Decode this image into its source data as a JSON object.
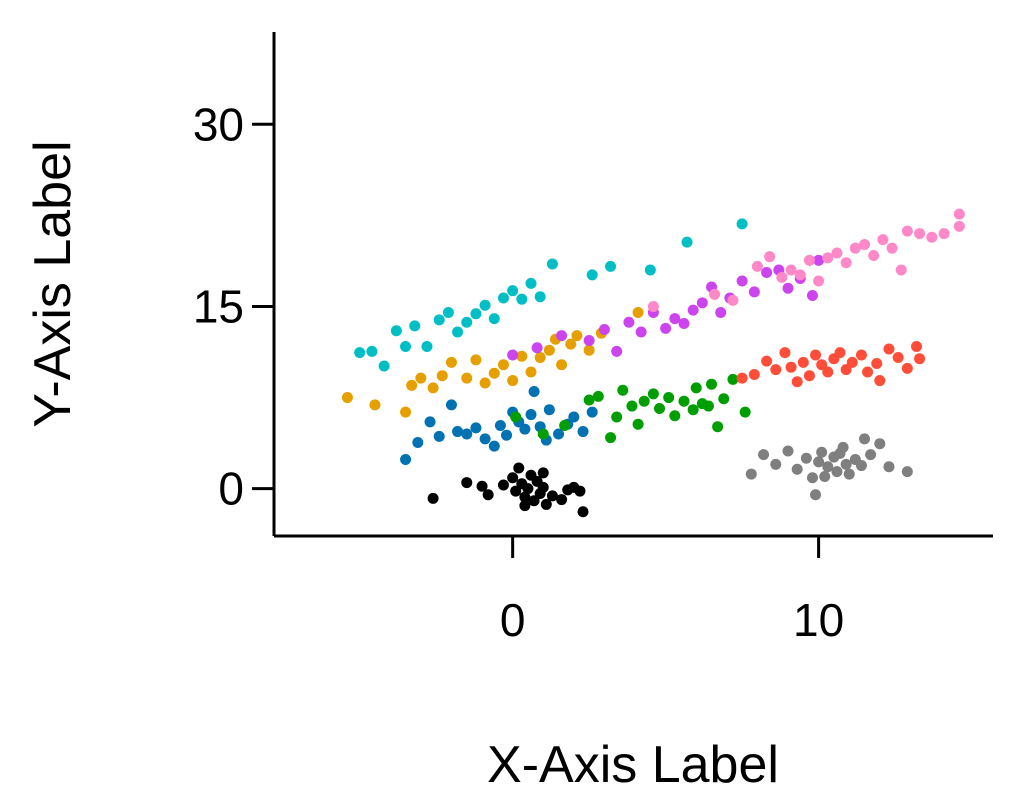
{
  "chart_data": {
    "type": "scatter",
    "title": "",
    "xlabel": "X-Axis Label",
    "ylabel": "Y-Axis Label",
    "xlim": [
      -7.8,
      15.7
    ],
    "ylim": [
      -3.9,
      37.6
    ],
    "xticks": [
      0,
      10
    ],
    "yticks": [
      0,
      15,
      30
    ],
    "grid": false,
    "legend": "none",
    "series": [
      {
        "color": "#000000",
        "points": [
          [
            -2.6,
            -0.8
          ],
          [
            -1.5,
            0.5
          ],
          [
            -1.0,
            0.2
          ],
          [
            -0.8,
            -0.5
          ],
          [
            -0.3,
            0.3
          ],
          [
            0.0,
            0.9
          ],
          [
            0.1,
            -0.2
          ],
          [
            0.2,
            1.7
          ],
          [
            0.3,
            0.4
          ],
          [
            0.4,
            -0.7
          ],
          [
            0.5,
            0.0
          ],
          [
            0.6,
            1.1
          ],
          [
            0.7,
            -1.0
          ],
          [
            0.8,
            0.6
          ],
          [
            0.9,
            -0.4
          ],
          [
            1.0,
            0.1
          ],
          [
            1.1,
            -1.3
          ],
          [
            1.3,
            -0.6
          ],
          [
            1.6,
            -0.9
          ],
          [
            1.8,
            -0.1
          ],
          [
            2.0,
            0.1
          ],
          [
            2.2,
            -0.2
          ],
          [
            2.3,
            -1.9
          ],
          [
            1.0,
            1.3
          ],
          [
            0.4,
            -1.4
          ]
        ]
      },
      {
        "color": "#7f7f7f",
        "points": [
          [
            7.8,
            1.2
          ],
          [
            8.2,
            2.8
          ],
          [
            8.6,
            2.0
          ],
          [
            9.0,
            3.1
          ],
          [
            9.3,
            1.6
          ],
          [
            9.6,
            2.5
          ],
          [
            9.8,
            0.9
          ],
          [
            10.0,
            2.2
          ],
          [
            10.1,
            3.0
          ],
          [
            10.2,
            1.0
          ],
          [
            10.3,
            1.8
          ],
          [
            10.5,
            2.6
          ],
          [
            10.6,
            1.4
          ],
          [
            10.8,
            3.4
          ],
          [
            10.9,
            2.0
          ],
          [
            11.0,
            1.2
          ],
          [
            11.2,
            2.4
          ],
          [
            11.4,
            1.9
          ],
          [
            11.5,
            4.1
          ],
          [
            11.7,
            2.8
          ],
          [
            12.0,
            3.7
          ],
          [
            12.3,
            1.8
          ],
          [
            12.9,
            1.4
          ],
          [
            9.9,
            -0.5
          ],
          [
            10.7,
            2.9
          ]
        ]
      },
      {
        "color": "#0072b2",
        "points": [
          [
            -3.5,
            2.4
          ],
          [
            -3.1,
            3.8
          ],
          [
            -2.7,
            5.5
          ],
          [
            -2.4,
            4.3
          ],
          [
            -2.0,
            6.9
          ],
          [
            -1.8,
            4.7
          ],
          [
            -1.5,
            4.5
          ],
          [
            -1.2,
            5.0
          ],
          [
            -0.9,
            4.1
          ],
          [
            -0.6,
            3.5
          ],
          [
            -0.4,
            5.2
          ],
          [
            -0.2,
            4.4
          ],
          [
            0.0,
            6.3
          ],
          [
            0.2,
            5.5
          ],
          [
            0.4,
            4.9
          ],
          [
            0.6,
            6.1
          ],
          [
            0.7,
            8.0
          ],
          [
            0.9,
            5.1
          ],
          [
            1.1,
            4.0
          ],
          [
            1.2,
            6.5
          ],
          [
            1.5,
            4.5
          ],
          [
            1.8,
            5.3
          ],
          [
            2.0,
            5.9
          ],
          [
            2.3,
            4.7
          ],
          [
            2.6,
            6.3
          ]
        ]
      },
      {
        "color": "#009e00",
        "points": [
          [
            1.0,
            4.5
          ],
          [
            1.7,
            5.2
          ],
          [
            2.5,
            7.3
          ],
          [
            2.8,
            7.6
          ],
          [
            3.2,
            4.2
          ],
          [
            3.4,
            5.9
          ],
          [
            3.6,
            8.1
          ],
          [
            3.9,
            6.8
          ],
          [
            4.1,
            5.3
          ],
          [
            4.3,
            7.2
          ],
          [
            4.6,
            7.8
          ],
          [
            4.8,
            6.6
          ],
          [
            5.1,
            7.5
          ],
          [
            5.3,
            6.0
          ],
          [
            5.6,
            7.2
          ],
          [
            5.9,
            6.5
          ],
          [
            6.0,
            8.3
          ],
          [
            6.2,
            7.0
          ],
          [
            6.4,
            6.8
          ],
          [
            6.5,
            8.6
          ],
          [
            6.7,
            5.1
          ],
          [
            6.9,
            7.4
          ],
          [
            7.2,
            9.0
          ],
          [
            7.6,
            6.3
          ],
          [
            0.1,
            5.9
          ]
        ]
      },
      {
        "color": "#e69f00",
        "points": [
          [
            -5.4,
            7.5
          ],
          [
            -4.5,
            6.9
          ],
          [
            -3.5,
            6.3
          ],
          [
            -3.3,
            8.5
          ],
          [
            -3.0,
            9.1
          ],
          [
            -2.6,
            8.3
          ],
          [
            -2.3,
            9.3
          ],
          [
            -2.0,
            10.4
          ],
          [
            -1.5,
            9.1
          ],
          [
            -1.2,
            10.6
          ],
          [
            -0.9,
            8.7
          ],
          [
            -0.6,
            9.5
          ],
          [
            -0.3,
            10.2
          ],
          [
            0.0,
            8.9
          ],
          [
            0.3,
            10.9
          ],
          [
            0.6,
            9.6
          ],
          [
            0.9,
            10.8
          ],
          [
            1.2,
            11.4
          ],
          [
            1.4,
            12.3
          ],
          [
            1.6,
            10.2
          ],
          [
            1.9,
            11.9
          ],
          [
            2.1,
            12.6
          ],
          [
            2.5,
            11.4
          ],
          [
            2.9,
            12.8
          ],
          [
            4.1,
            14.5
          ]
        ]
      },
      {
        "color": "#00bfc4",
        "points": [
          [
            -5.0,
            11.2
          ],
          [
            -4.6,
            11.3
          ],
          [
            -4.2,
            10.1
          ],
          [
            -3.8,
            13.0
          ],
          [
            -3.5,
            11.7
          ],
          [
            -3.2,
            13.4
          ],
          [
            -2.8,
            11.7
          ],
          [
            -2.4,
            13.9
          ],
          [
            -2.1,
            14.5
          ],
          [
            -1.8,
            12.9
          ],
          [
            -1.5,
            13.7
          ],
          [
            -1.2,
            14.4
          ],
          [
            -0.9,
            15.1
          ],
          [
            -0.6,
            14.0
          ],
          [
            -0.3,
            15.7
          ],
          [
            0.0,
            16.3
          ],
          [
            0.3,
            15.6
          ],
          [
            0.6,
            16.9
          ],
          [
            0.9,
            15.8
          ],
          [
            1.3,
            18.5
          ],
          [
            2.6,
            17.6
          ],
          [
            3.2,
            18.3
          ],
          [
            4.5,
            18.0
          ],
          [
            5.7,
            20.3
          ],
          [
            7.5,
            21.8
          ]
        ]
      },
      {
        "color": "#cc44ee",
        "points": [
          [
            0.0,
            11.0
          ],
          [
            0.8,
            11.6
          ],
          [
            1.6,
            12.6
          ],
          [
            2.5,
            12.2
          ],
          [
            3.0,
            13.1
          ],
          [
            3.4,
            11.3
          ],
          [
            3.8,
            13.7
          ],
          [
            4.2,
            12.9
          ],
          [
            4.6,
            14.5
          ],
          [
            5.0,
            13.2
          ],
          [
            5.3,
            14.0
          ],
          [
            5.6,
            13.6
          ],
          [
            5.9,
            14.7
          ],
          [
            6.2,
            15.3
          ],
          [
            6.5,
            16.6
          ],
          [
            6.8,
            14.5
          ],
          [
            7.1,
            15.7
          ],
          [
            7.5,
            17.1
          ],
          [
            7.9,
            16.2
          ],
          [
            8.3,
            17.8
          ],
          [
            8.7,
            18.0
          ],
          [
            9.0,
            16.5
          ],
          [
            9.4,
            17.3
          ],
          [
            9.8,
            15.9
          ],
          [
            10.0,
            18.8
          ]
        ]
      },
      {
        "color": "#ff4d3a",
        "points": [
          [
            7.5,
            9.1
          ],
          [
            7.9,
            9.4
          ],
          [
            8.3,
            10.5
          ],
          [
            8.6,
            9.8
          ],
          [
            8.9,
            11.2
          ],
          [
            9.1,
            10.0
          ],
          [
            9.3,
            8.8
          ],
          [
            9.5,
            10.4
          ],
          [
            9.7,
            9.3
          ],
          [
            9.9,
            11.0
          ],
          [
            10.1,
            10.2
          ],
          [
            10.3,
            9.6
          ],
          [
            10.5,
            10.7
          ],
          [
            10.7,
            11.2
          ],
          [
            10.9,
            9.8
          ],
          [
            11.1,
            10.4
          ],
          [
            11.4,
            11.0
          ],
          [
            11.6,
            9.6
          ],
          [
            11.9,
            10.3
          ],
          [
            12.0,
            8.9
          ],
          [
            12.3,
            11.5
          ],
          [
            12.6,
            10.8
          ],
          [
            12.9,
            9.9
          ],
          [
            13.2,
            11.7
          ],
          [
            13.3,
            10.7
          ]
        ]
      },
      {
        "color": "#ff88c8",
        "points": [
          [
            4.6,
            15.0
          ],
          [
            6.6,
            16.0
          ],
          [
            7.2,
            15.5
          ],
          [
            8.0,
            18.3
          ],
          [
            8.4,
            19.1
          ],
          [
            8.8,
            17.4
          ],
          [
            9.1,
            18.0
          ],
          [
            9.4,
            17.6
          ],
          [
            9.7,
            18.8
          ],
          [
            10.0,
            17.1
          ],
          [
            10.3,
            19.0
          ],
          [
            10.6,
            19.4
          ],
          [
            10.9,
            18.6
          ],
          [
            11.2,
            19.8
          ],
          [
            11.5,
            20.1
          ],
          [
            11.8,
            19.2
          ],
          [
            12.1,
            20.5
          ],
          [
            12.4,
            19.8
          ],
          [
            12.7,
            18.0
          ],
          [
            12.9,
            21.2
          ],
          [
            13.3,
            21.0
          ],
          [
            13.7,
            20.7
          ],
          [
            14.1,
            21.0
          ],
          [
            14.6,
            22.6
          ],
          [
            14.6,
            21.6
          ]
        ]
      }
    ]
  }
}
